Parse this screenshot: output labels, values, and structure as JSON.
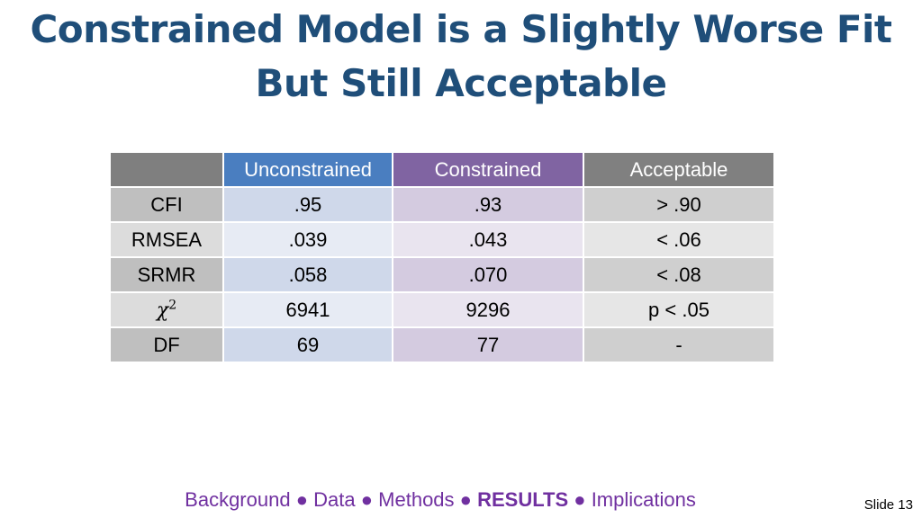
{
  "title": {
    "line1": "Constrained Model is a Slightly Worse Fit",
    "line2": "But Still Acceptable"
  },
  "table": {
    "headers": [
      "",
      "Unconstrained",
      "Constrained",
      "Acceptable"
    ],
    "rows": [
      {
        "label": "CFI",
        "unconstrained": ".95",
        "constrained": ".93",
        "acceptable": "> .90"
      },
      {
        "label": "RMSEA",
        "unconstrained": ".039",
        "constrained": ".043",
        "acceptable": "< .06"
      },
      {
        "label": "SRMR",
        "unconstrained": ".058",
        "constrained": ".070",
        "acceptable": "< .08"
      },
      {
        "label_symbol": "χ",
        "label_sup": "2",
        "unconstrained": "6941",
        "constrained": "9296",
        "acceptable": "p < .05"
      },
      {
        "label": "DF",
        "unconstrained": "69",
        "constrained": "77",
        "acceptable": "-"
      }
    ]
  },
  "nav": {
    "items": [
      "Background",
      "Data",
      "Methods",
      "RESULTS",
      "Implications"
    ],
    "separator": "●",
    "current": "RESULTS"
  },
  "slide_number": "Slide 13",
  "colors": {
    "title": "#1f4e79",
    "unconstrained_header": "#4a7ec0",
    "constrained_header": "#8064a2",
    "acceptable_header": "#808080",
    "nav_text": "#7030a0"
  }
}
